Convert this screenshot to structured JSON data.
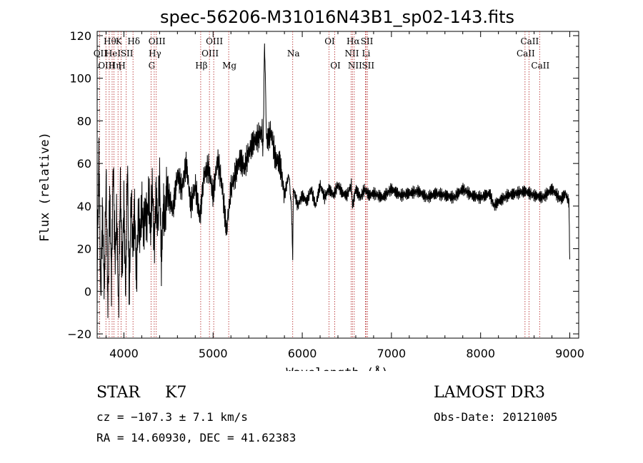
{
  "chart_data": {
    "type": "line",
    "title": "spec-56206-M31016N43B1_sp02-143.fits",
    "xlabel": "Wavelength (Å)",
    "ylabel": "Flux (relative)",
    "xlim": [
      3700,
      9100
    ],
    "ylim": [
      -22,
      122
    ],
    "xticks": [
      4000,
      5000,
      6000,
      7000,
      8000,
      9000
    ],
    "yticks": [
      -20,
      0,
      20,
      40,
      60,
      80,
      100,
      120
    ],
    "series": [
      {
        "name": "flux",
        "x": [
          3700,
          3720,
          3740,
          3760,
          3780,
          3800,
          3820,
          3840,
          3860,
          3880,
          3900,
          3920,
          3940,
          3960,
          3980,
          4000,
          4020,
          4040,
          4060,
          4080,
          4100,
          4120,
          4140,
          4160,
          4180,
          4200,
          4220,
          4240,
          4260,
          4280,
          4300,
          4320,
          4340,
          4360,
          4380,
          4400,
          4420,
          4440,
          4460,
          4480,
          4500,
          4550,
          4600,
          4650,
          4700,
          4750,
          4800,
          4850,
          4870,
          4900,
          4950,
          5000,
          5050,
          5100,
          5150,
          5180,
          5200,
          5250,
          5300,
          5350,
          5400,
          5450,
          5500,
          5550,
          5560,
          5577,
          5600,
          5650,
          5700,
          5750,
          5800,
          5850,
          5880,
          5893,
          5900,
          5950,
          6000,
          6050,
          6100,
          6150,
          6200,
          6250,
          6300,
          6350,
          6400,
          6450,
          6500,
          6550,
          6563,
          6600,
          6650,
          6700,
          6750,
          6800,
          6900,
          7000,
          7100,
          7200,
          7300,
          7400,
          7500,
          7600,
          7700,
          7800,
          7900,
          8000,
          8100,
          8150,
          8200,
          8300,
          8400,
          8500,
          8600,
          8700,
          8800,
          8900,
          8950,
          8990,
          9000
        ],
        "y": [
          5,
          66,
          -5,
          40,
          0,
          55,
          -8,
          45,
          5,
          60,
          15,
          35,
          -10,
          50,
          10,
          42,
          0,
          60,
          -5,
          45,
          20,
          40,
          5,
          35,
          25,
          40,
          30,
          38,
          35,
          45,
          28,
          50,
          20,
          48,
          30,
          55,
          12,
          40,
          32,
          50,
          45,
          38,
          55,
          48,
          60,
          40,
          50,
          35,
          42,
          55,
          58,
          45,
          62,
          50,
          28,
          40,
          48,
          55,
          62,
          58,
          65,
          70,
          72,
          75,
          65,
          118,
          70,
          75,
          62,
          60,
          45,
          55,
          38,
          15,
          48,
          40,
          45,
          42,
          48,
          40,
          50,
          44,
          48,
          45,
          50,
          46,
          45,
          50,
          40,
          48,
          44,
          48,
          45,
          46,
          44,
          48,
          45,
          46,
          47,
          44,
          46,
          45,
          44,
          48,
          45,
          44,
          46,
          40,
          42,
          45,
          46,
          47,
          45,
          44,
          48,
          43,
          46,
          42,
          15
        ],
        "color": "#000000"
      }
    ],
    "lines": [
      {
        "x": 3727,
        "label": "OII",
        "row": 2
      },
      {
        "x": 3798,
        "label": "OIII",
        "row": 3
      },
      {
        "x": 3835,
        "label": "Hθ",
        "row": 1
      },
      {
        "x": 3868,
        "label": "HeI",
        "row": 2
      },
      {
        "x": 3889,
        "label": "Hη",
        "row": 3
      },
      {
        "x": 3934,
        "label": "K",
        "row": 1
      },
      {
        "x": 3969,
        "label": "H",
        "row": 3
      },
      {
        "x": 4026,
        "label": "SII",
        "row": 2
      },
      {
        "x": 4102,
        "label": "Hδ",
        "row": 1
      },
      {
        "x": 4304,
        "label": "G",
        "row": 3
      },
      {
        "x": 4340,
        "label": "Hγ",
        "row": 2
      },
      {
        "x": 4363,
        "label": "OIII",
        "row": 1
      },
      {
        "x": 4861,
        "label": "Hβ",
        "row": 3
      },
      {
        "x": 4959,
        "label": "OIII",
        "row": 2
      },
      {
        "x": 5007,
        "label": "OIII",
        "row": 1
      },
      {
        "x": 5175,
        "label": "Mg",
        "row": 3
      },
      {
        "x": 5893,
        "label": "Na",
        "row": 2
      },
      {
        "x": 6300,
        "label": "OI",
        "row": 1
      },
      {
        "x": 6364,
        "label": "OI",
        "row": 3
      },
      {
        "x": 6548,
        "label": "NII",
        "row": 2
      },
      {
        "x": 6563,
        "label": "Hα",
        "row": 1
      },
      {
        "x": 6583,
        "label": "NII",
        "row": 3
      },
      {
        "x": 6708,
        "label": "Li",
        "row": 2
      },
      {
        "x": 6717,
        "label": "SII",
        "row": 1
      },
      {
        "x": 6731,
        "label": "SII",
        "row": 3
      },
      {
        "x": 8498,
        "label": "CaII",
        "row": 2
      },
      {
        "x": 8542,
        "label": "CaII",
        "row": 1
      },
      {
        "x": 8662,
        "label": "CaII",
        "row": 3
      }
    ]
  },
  "info": {
    "class": "STAR",
    "subclass": "K7",
    "survey": "LAMOST DR3",
    "cz": "cz = −107.3 ± 7.1 km/s",
    "obs_date": "Obs-Date: 20121005",
    "radec": "RA =  14.60930, DEC =  41.62383"
  }
}
